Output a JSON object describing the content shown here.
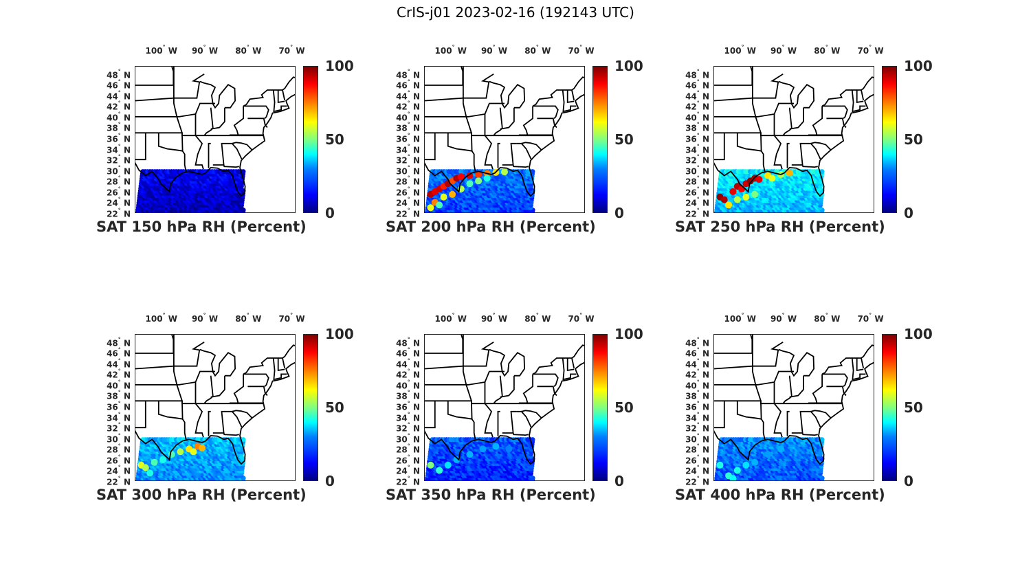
{
  "figure_title": "CrIS-j01 2023-02-16 (192143 UTC)",
  "lon_ticks": [
    "100",
    "90",
    "80",
    "70"
  ],
  "lon_suffix": "W",
  "lat_ticks": [
    "48",
    "46",
    "44",
    "42",
    "40",
    "38",
    "36",
    "34",
    "32",
    "30",
    "28",
    "26",
    "24",
    "22"
  ],
  "lat_suffix": "N",
  "colorbar_ticks": [
    "100",
    "50",
    "0"
  ],
  "colormap": "jet",
  "chart_data": [
    {
      "type": "scatter",
      "title": "SAT 150 hPa RH (Percent)",
      "xlabel": "",
      "ylabel": "",
      "xlim": [
        -105.5,
        -68.5
      ],
      "ylim": [
        22,
        49.5
      ],
      "clim": [
        0,
        100
      ],
      "dominant_rh": 5,
      "highs": []
    },
    {
      "type": "scatter",
      "title": "SAT 200 hPa RH (Percent)",
      "xlabel": "",
      "ylabel": "",
      "xlim": [
        -105.5,
        -68.5
      ],
      "ylim": [
        22,
        49.5
      ],
      "clim": [
        0,
        100
      ],
      "dominant_rh": 18,
      "highs": [
        [
          -104,
          25.5,
          95
        ],
        [
          -103,
          26,
          90
        ],
        [
          -102,
          26.5,
          92
        ],
        [
          -101,
          27,
          85
        ],
        [
          -100,
          27.5,
          95
        ],
        [
          -99,
          28,
          80
        ],
        [
          -98,
          28.5,
          95
        ],
        [
          -97,
          28.8,
          88
        ],
        [
          -95,
          29,
          90
        ],
        [
          -93,
          29.2,
          82
        ],
        [
          -91,
          29.4,
          75
        ],
        [
          -89,
          29.6,
          65
        ],
        [
          -87,
          29.7,
          55
        ],
        [
          -103,
          24,
          75
        ],
        [
          -101,
          25,
          60
        ],
        [
          -99,
          25.5,
          70
        ],
        [
          -97,
          26.5,
          55
        ],
        [
          -95,
          27.5,
          45
        ],
        [
          -93,
          28,
          50
        ],
        [
          -91,
          28.5,
          40
        ],
        [
          -104,
          23,
          60
        ],
        [
          -102,
          23.5,
          45
        ]
      ]
    },
    {
      "type": "scatter",
      "title": "SAT 250 hPa RH (Percent)",
      "xlabel": "",
      "ylabel": "",
      "xlim": [
        -105.5,
        -68.5
      ],
      "ylim": [
        22,
        49.5
      ],
      "clim": [
        0,
        100
      ],
      "dominant_rh": 30,
      "highs": [
        [
          -104,
          25,
          98
        ],
        [
          -103,
          24.5,
          95
        ],
        [
          -101,
          26,
          90
        ],
        [
          -100,
          27,
          95
        ],
        [
          -99,
          26.5,
          88
        ],
        [
          -98,
          27.5,
          92
        ],
        [
          -97,
          28,
          98
        ],
        [
          -96,
          28.5,
          95
        ],
        [
          -95,
          28.3,
          90
        ],
        [
          -93,
          29,
          65
        ],
        [
          -92,
          28.5,
          60
        ],
        [
          -90,
          29.2,
          55
        ],
        [
          -88,
          29.5,
          70
        ],
        [
          -102,
          23.5,
          65
        ],
        [
          -100,
          24.5,
          55
        ],
        [
          -98,
          25,
          60
        ],
        [
          -96,
          25.5,
          50
        ]
      ]
    },
    {
      "type": "scatter",
      "title": "SAT 300 hPa RH (Percent)",
      "xlabel": "",
      "ylabel": "",
      "xlim": [
        -105.5,
        -68.5
      ],
      "ylim": [
        22,
        49.5
      ],
      "clim": [
        0,
        100
      ],
      "dominant_rh": 25,
      "highs": [
        [
          -104,
          25,
          60
        ],
        [
          -103,
          24.5,
          55
        ],
        [
          -101,
          25.5,
          45
        ],
        [
          -99,
          26,
          40
        ],
        [
          -97,
          27,
          45
        ],
        [
          -95,
          27.5,
          55
        ],
        [
          -93,
          28,
          65
        ],
        [
          -92,
          27.5,
          60
        ],
        [
          -91,
          28.5,
          75
        ],
        [
          -90,
          28.2,
          70
        ],
        [
          -102,
          23.5,
          40
        ]
      ]
    },
    {
      "type": "scatter",
      "title": "SAT 350 hPa RH (Percent)",
      "xlabel": "",
      "ylabel": "",
      "xlim": [
        -105.5,
        -68.5
      ],
      "ylim": [
        22,
        49.5
      ],
      "clim": [
        0,
        100
      ],
      "dominant_rh": 15,
      "highs": [
        [
          -104,
          25,
          50
        ],
        [
          -102,
          24,
          42
        ],
        [
          -100,
          25,
          35
        ],
        [
          -98,
          26,
          30
        ],
        [
          -95,
          27,
          30
        ],
        [
          -92,
          28,
          28
        ],
        [
          -89,
          28.5,
          30
        ],
        [
          -86,
          28,
          25
        ]
      ]
    },
    {
      "type": "scatter",
      "title": "SAT 400 hPa RH (Percent)",
      "xlabel": "",
      "ylabel": "",
      "xlim": [
        -105.5,
        -68.5
      ],
      "ylim": [
        22,
        49.5
      ],
      "clim": [
        0,
        100
      ],
      "dominant_rh": 20,
      "highs": [
        [
          -104,
          25,
          40
        ],
        [
          -102,
          23,
          42
        ],
        [
          -101,
          22.5,
          38
        ],
        [
          -100,
          24,
          40
        ],
        [
          -98,
          25,
          35
        ],
        [
          -96,
          25.5,
          30
        ],
        [
          -93,
          27,
          28
        ],
        [
          -90,
          28,
          30
        ]
      ]
    }
  ]
}
